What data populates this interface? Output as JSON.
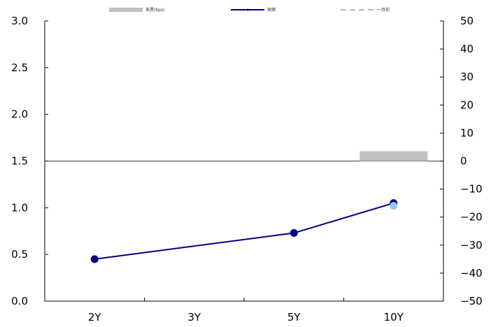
{
  "chart_data": {
    "type": "line",
    "categories": [
      "2Y",
      "3Y",
      "5Y",
      "10Y"
    ],
    "y_left": {
      "ticks": [
        "0.0",
        "0.5",
        "1.0",
        "1.5",
        "2.0",
        "2.5",
        "3.0"
      ],
      "range": [
        0,
        3
      ]
    },
    "y_right": {
      "ticks": [
        "-50",
        "-40",
        "-30",
        "-20",
        "-10",
        "0",
        "10",
        "20",
        "30",
        "40",
        "50"
      ],
      "range": [
        -50,
        50
      ]
    },
    "reference_line_left": 1.5,
    "legend_position": "top",
    "series": [
      {
        "name": "差異(bps)",
        "kind": "bar",
        "axis": "right",
        "color": "#c0c0c0",
        "points": [
          {
            "x": "10Y",
            "y": 3.5
          }
        ]
      },
      {
        "name": "現價",
        "kind": "line",
        "axis": "left",
        "color": "#000080",
        "points": [
          {
            "x": "2Y",
            "y": 0.45
          },
          {
            "x": "5Y",
            "y": 0.73
          },
          {
            "x": "10Y",
            "y": 1.05
          }
        ]
      },
      {
        "name": "一月前",
        "kind": "dashed-line",
        "axis": "left",
        "color": "#99c4ee",
        "points": [
          {
            "x": "10Y",
            "y": 1.02
          }
        ]
      }
    ]
  }
}
